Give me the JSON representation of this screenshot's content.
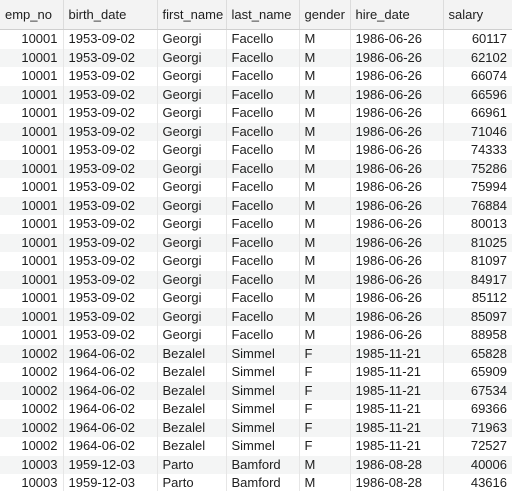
{
  "table": {
    "columns": [
      "emp_no",
      "birth_date",
      "first_name",
      "last_name",
      "gender",
      "hire_date",
      "salary"
    ],
    "rows": [
      [
        "10001",
        "1953-09-02",
        "Georgi",
        "Facello",
        "M",
        "1986-06-26",
        "60117"
      ],
      [
        "10001",
        "1953-09-02",
        "Georgi",
        "Facello",
        "M",
        "1986-06-26",
        "62102"
      ],
      [
        "10001",
        "1953-09-02",
        "Georgi",
        "Facello",
        "M",
        "1986-06-26",
        "66074"
      ],
      [
        "10001",
        "1953-09-02",
        "Georgi",
        "Facello",
        "M",
        "1986-06-26",
        "66596"
      ],
      [
        "10001",
        "1953-09-02",
        "Georgi",
        "Facello",
        "M",
        "1986-06-26",
        "66961"
      ],
      [
        "10001",
        "1953-09-02",
        "Georgi",
        "Facello",
        "M",
        "1986-06-26",
        "71046"
      ],
      [
        "10001",
        "1953-09-02",
        "Georgi",
        "Facello",
        "M",
        "1986-06-26",
        "74333"
      ],
      [
        "10001",
        "1953-09-02",
        "Georgi",
        "Facello",
        "M",
        "1986-06-26",
        "75286"
      ],
      [
        "10001",
        "1953-09-02",
        "Georgi",
        "Facello",
        "M",
        "1986-06-26",
        "75994"
      ],
      [
        "10001",
        "1953-09-02",
        "Georgi",
        "Facello",
        "M",
        "1986-06-26",
        "76884"
      ],
      [
        "10001",
        "1953-09-02",
        "Georgi",
        "Facello",
        "M",
        "1986-06-26",
        "80013"
      ],
      [
        "10001",
        "1953-09-02",
        "Georgi",
        "Facello",
        "M",
        "1986-06-26",
        "81025"
      ],
      [
        "10001",
        "1953-09-02",
        "Georgi",
        "Facello",
        "M",
        "1986-06-26",
        "81097"
      ],
      [
        "10001",
        "1953-09-02",
        "Georgi",
        "Facello",
        "M",
        "1986-06-26",
        "84917"
      ],
      [
        "10001",
        "1953-09-02",
        "Georgi",
        "Facello",
        "M",
        "1986-06-26",
        "85112"
      ],
      [
        "10001",
        "1953-09-02",
        "Georgi",
        "Facello",
        "M",
        "1986-06-26",
        "85097"
      ],
      [
        "10001",
        "1953-09-02",
        "Georgi",
        "Facello",
        "M",
        "1986-06-26",
        "88958"
      ],
      [
        "10002",
        "1964-06-02",
        "Bezalel",
        "Simmel",
        "F",
        "1985-11-21",
        "65828"
      ],
      [
        "10002",
        "1964-06-02",
        "Bezalel",
        "Simmel",
        "F",
        "1985-11-21",
        "65909"
      ],
      [
        "10002",
        "1964-06-02",
        "Bezalel",
        "Simmel",
        "F",
        "1985-11-21",
        "67534"
      ],
      [
        "10002",
        "1964-06-02",
        "Bezalel",
        "Simmel",
        "F",
        "1985-11-21",
        "69366"
      ],
      [
        "10002",
        "1964-06-02",
        "Bezalel",
        "Simmel",
        "F",
        "1985-11-21",
        "71963"
      ],
      [
        "10002",
        "1964-06-02",
        "Bezalel",
        "Simmel",
        "F",
        "1985-11-21",
        "72527"
      ],
      [
        "10003",
        "1959-12-03",
        "Parto",
        "Bamford",
        "M",
        "1986-08-28",
        "40006"
      ],
      [
        "10003",
        "1959-12-03",
        "Parto",
        "Bamford",
        "M",
        "1986-08-28",
        "43616"
      ]
    ]
  }
}
